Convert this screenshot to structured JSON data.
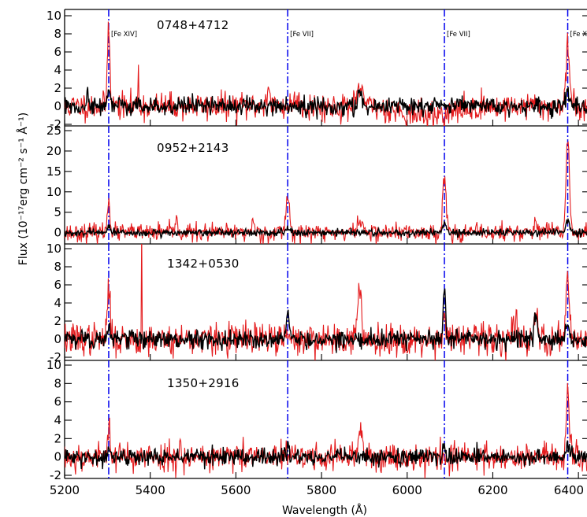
{
  "chart_data": {
    "type": "line",
    "xlabel": "Wavelength (Å)",
    "ylabel": "Flux (10⁻¹⁷erg cm⁻² s⁻¹ Å⁻¹)",
    "xlim": [
      5200,
      6420
    ],
    "xticks": [
      5200,
      5400,
      5600,
      5800,
      6000,
      6200,
      6400
    ],
    "x_tick_labels": [
      "5200",
      "5400",
      "5600",
      "5800",
      "6000",
      "6200",
      "6400"
    ],
    "reference_lines": [
      {
        "x": 5303,
        "label": "[Fe XIV]"
      },
      {
        "x": 5721,
        "label": "[Fe VII]"
      },
      {
        "x": 6087,
        "label": "[Fe VII]"
      },
      {
        "x": 6375,
        "label": "[Fe X]"
      }
    ],
    "series_colors": {
      "red": "#e41a1c",
      "black": "#000000",
      "reference": "#0000ee"
    },
    "panels": [
      {
        "object": "0748+4712",
        "ylim": [
          -2,
          10
        ],
        "yticks": [
          -2,
          0,
          2,
          4,
          6,
          8,
          10
        ],
        "y_tick_labels": [
          "-2",
          "0",
          "2",
          "4",
          "6",
          "8",
          "10"
        ],
        "seed": 11,
        "noise_red": 0.75,
        "noise_black": 0.5,
        "red_features": [
          {
            "x": 5303,
            "a": 9.2,
            "w": 3
          },
          {
            "x": 5372,
            "a": 5.5,
            "w": 0.8
          },
          {
            "x": 5675,
            "a": 1.5,
            "w": 5
          },
          {
            "x": 5742,
            "a": 1.0,
            "w": 6
          },
          {
            "x": 5892,
            "a": 2.0,
            "w": 6
          },
          {
            "x": 6050,
            "a": -1.0,
            "w": 60
          },
          {
            "x": 6375,
            "a": 6.8,
            "w": 4
          }
        ],
        "black_features": [
          {
            "x": 5253,
            "a": 2.0,
            "w": 1.5
          },
          {
            "x": 5303,
            "a": 2.0,
            "w": 3
          },
          {
            "x": 5892,
            "a": 1.2,
            "w": 6
          },
          {
            "x": 6120,
            "a": 1.0,
            "w": 3
          },
          {
            "x": 6375,
            "a": 1.5,
            "w": 4
          }
        ]
      },
      {
        "object": "0952+2143",
        "ylim": [
          -2,
          25
        ],
        "yticks": [
          0,
          5,
          10,
          15,
          20,
          25
        ],
        "y_tick_labels": [
          "0",
          "5",
          "10",
          "15",
          "20",
          "25"
        ],
        "seed": 23,
        "noise_red": 1.1,
        "noise_black": 0.45,
        "red_features": [
          {
            "x": 5303,
            "a": 8.5,
            "w": 3
          },
          {
            "x": 5460,
            "a": 3.0,
            "w": 3
          },
          {
            "x": 5640,
            "a": 3.0,
            "w": 3
          },
          {
            "x": 5721,
            "a": 9.5,
            "w": 4
          },
          {
            "x": 5890,
            "a": 2.5,
            "w": 7
          },
          {
            "x": 6087,
            "a": 13.5,
            "w": 4
          },
          {
            "x": 6300,
            "a": 2.0,
            "w": 5
          },
          {
            "x": 6375,
            "a": 23.0,
            "w": 4
          }
        ],
        "black_features": [
          {
            "x": 5303,
            "a": 1.5,
            "w": 3
          },
          {
            "x": 5721,
            "a": 1.0,
            "w": 4
          },
          {
            "x": 6087,
            "a": 2.5,
            "w": 4
          },
          {
            "x": 6375,
            "a": 3.0,
            "w": 4
          }
        ]
      },
      {
        "object": "1342+0530",
        "ylim": [
          -2,
          10
        ],
        "yticks": [
          -2,
          0,
          2,
          4,
          6,
          8,
          10
        ],
        "y_tick_labels": [
          "-2",
          "0",
          "2",
          "4",
          "6",
          "8",
          "10"
        ],
        "seed": 37,
        "noise_red": 0.9,
        "noise_black": 0.5,
        "red_features": [
          {
            "x": 5303,
            "a": 6.2,
            "w": 3
          },
          {
            "x": 5380,
            "a": 11.5,
            "w": 0.6
          },
          {
            "x": 5888,
            "a": 4.5,
            "w": 5
          },
          {
            "x": 6087,
            "a": 2.5,
            "w": 4
          },
          {
            "x": 6250,
            "a": 1.5,
            "w": 8
          },
          {
            "x": 6300,
            "a": 2.0,
            "w": 5
          },
          {
            "x": 6375,
            "a": 7.2,
            "w": 4
          }
        ],
        "black_features": [
          {
            "x": 5303,
            "a": 1.5,
            "w": 3
          },
          {
            "x": 5721,
            "a": 3.2,
            "w": 3
          },
          {
            "x": 6087,
            "a": 5.5,
            "w": 3
          },
          {
            "x": 6300,
            "a": 2.5,
            "w": 4
          },
          {
            "x": 6375,
            "a": 1.5,
            "w": 4
          }
        ]
      },
      {
        "object": "1350+2916",
        "ylim": [
          -2,
          10
        ],
        "yticks": [
          -2,
          0,
          2,
          4,
          6,
          8,
          10
        ],
        "y_tick_labels": [
          "-2",
          "0",
          "2",
          "4",
          "6",
          "8",
          "10"
        ],
        "seed": 53,
        "noise_red": 0.8,
        "noise_black": 0.45,
        "red_features": [
          {
            "x": 5303,
            "a": 4.2,
            "w": 3
          },
          {
            "x": 5470,
            "a": 2.0,
            "w": 2
          },
          {
            "x": 5892,
            "a": 2.5,
            "w": 5
          },
          {
            "x": 6375,
            "a": 6.5,
            "w": 3.5
          }
        ],
        "black_features": [
          {
            "x": 5303,
            "a": 1.0,
            "w": 3
          },
          {
            "x": 5721,
            "a": 1.0,
            "w": 3
          },
          {
            "x": 6087,
            "a": 1.5,
            "w": 3
          },
          {
            "x": 6375,
            "a": 1.5,
            "w": 3
          }
        ]
      }
    ]
  }
}
